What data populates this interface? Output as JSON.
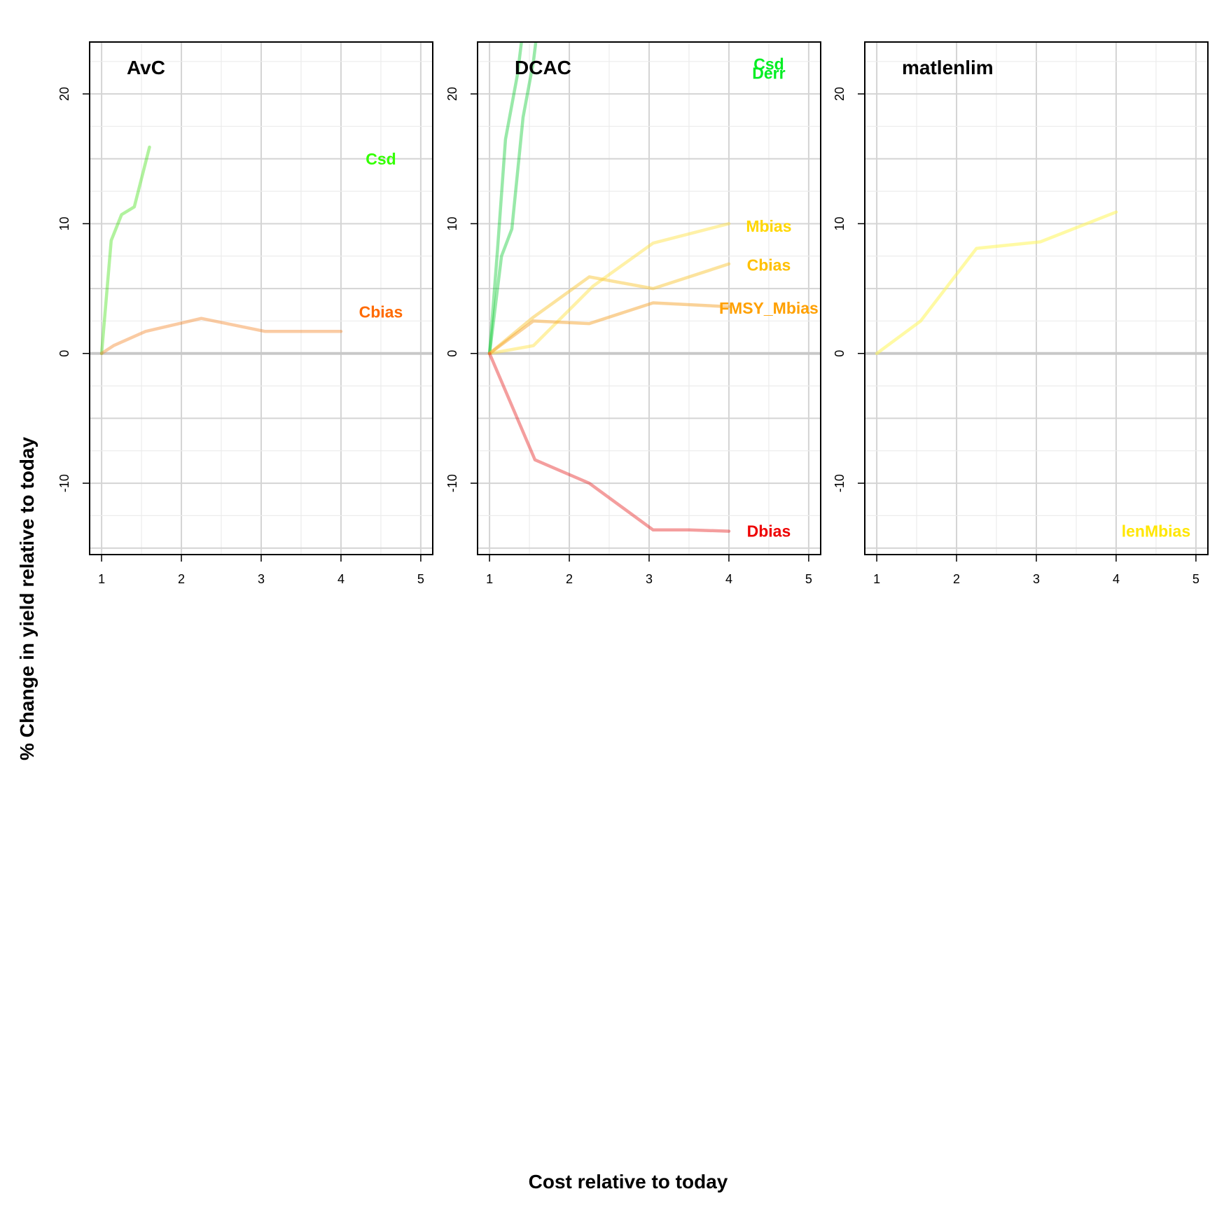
{
  "figure": {
    "xlabel": "Cost relative to today",
    "ylabel": "% Change in yield relative to today"
  },
  "chart_data": [
    {
      "type": "line",
      "title": "AvC",
      "xlim": [
        0.85,
        5.15
      ],
      "ylim": [
        -15.5,
        24
      ],
      "xticks": [
        1,
        2,
        3,
        4,
        5
      ],
      "yticks": [
        -10,
        0,
        10,
        20
      ],
      "grid": true,
      "series": [
        {
          "name": "Csd",
          "color": "#33FF00",
          "line_color": "rgba(51,220,0,0.38)",
          "label_at": [
            4.5,
            15
          ],
          "x": [
            1,
            1.12,
            1.25,
            1.41,
            1.6
          ],
          "y": [
            0,
            8.7,
            10.7,
            11.3,
            15.9
          ]
        },
        {
          "name": "Cbias",
          "color": "#FF6A00",
          "line_color": "rgba(245,140,50,0.45)",
          "label_at": [
            4.5,
            3.2
          ],
          "x": [
            1,
            1.15,
            1.55,
            2.25,
            3.05,
            4.0
          ],
          "y": [
            0,
            0.6,
            1.7,
            2.7,
            1.7,
            1.7
          ]
        }
      ]
    },
    {
      "type": "line",
      "title": "DCAC",
      "xlim": [
        0.85,
        5.15
      ],
      "ylim": [
        -15.5,
        24
      ],
      "xticks": [
        1,
        2,
        3,
        4,
        5
      ],
      "yticks": [
        -10,
        0,
        10,
        20
      ],
      "grid": true,
      "series": [
        {
          "name": "Csd",
          "color": "#00EE22",
          "line_color": "rgba(0,200,40,0.40)",
          "label_at": [
            4.5,
            22.3
          ],
          "x": [
            1,
            1.1,
            1.2,
            1.35,
            1.4
          ],
          "y": [
            0,
            8.0,
            16.5,
            21.5,
            24
          ]
        },
        {
          "name": "Derr",
          "color": "#00EE22",
          "line_color": "rgba(0,200,40,0.40)",
          "label_at": [
            4.5,
            21.6
          ],
          "x": [
            1,
            1.15,
            1.28,
            1.42,
            1.55,
            1.58
          ],
          "y": [
            0,
            7.5,
            9.6,
            18.2,
            22.5,
            24
          ]
        },
        {
          "name": "Mbias",
          "color": "#FFD700",
          "line_color": "rgba(255,225,60,0.45)",
          "label_at": [
            4.5,
            9.8
          ],
          "x": [
            1,
            1.55,
            2.3,
            3.05,
            4.0
          ],
          "y": [
            0,
            0.6,
            5.2,
            8.5,
            10.0
          ]
        },
        {
          "name": "Cbias",
          "color": "#FFC000",
          "line_color": "rgba(250,200,60,0.50)",
          "label_at": [
            4.5,
            6.8
          ],
          "x": [
            1,
            1.55,
            2.25,
            3.05,
            4.0
          ],
          "y": [
            0,
            2.8,
            5.9,
            5.0,
            6.9
          ]
        },
        {
          "name": "FMSY_Mbias",
          "color": "#FFA000",
          "line_color": "rgba(245,165,50,0.50)",
          "label_at": [
            4.5,
            3.5
          ],
          "x": [
            1,
            1.55,
            2.25,
            3.05,
            4.0
          ],
          "y": [
            0,
            2.5,
            2.3,
            3.9,
            3.6
          ]
        },
        {
          "name": "Dbias",
          "color": "#EE0000",
          "line_color": "rgba(230,40,40,0.45)",
          "label_at": [
            4.5,
            -13.7
          ],
          "x": [
            1,
            1.57,
            2.25,
            3.05,
            3.5,
            4.0
          ],
          "y": [
            0,
            -8.2,
            -10.0,
            -13.6,
            -13.6,
            -13.7
          ]
        }
      ]
    },
    {
      "type": "line",
      "title": "matlenlim",
      "xlim": [
        0.85,
        5.15
      ],
      "ylim": [
        -15.5,
        24
      ],
      "xticks": [
        1,
        2,
        3,
        4,
        5
      ],
      "yticks": [
        -10,
        0,
        10,
        20
      ],
      "grid": true,
      "series": [
        {
          "name": "lenMbias",
          "color": "#FFE600",
          "line_color": "rgba(255,245,90,0.55)",
          "label_at": [
            4.5,
            -13.7
          ],
          "x": [
            1,
            1.55,
            2.25,
            3.05,
            4.0
          ],
          "y": [
            0,
            2.5,
            8.1,
            8.6,
            10.9
          ]
        }
      ]
    }
  ]
}
